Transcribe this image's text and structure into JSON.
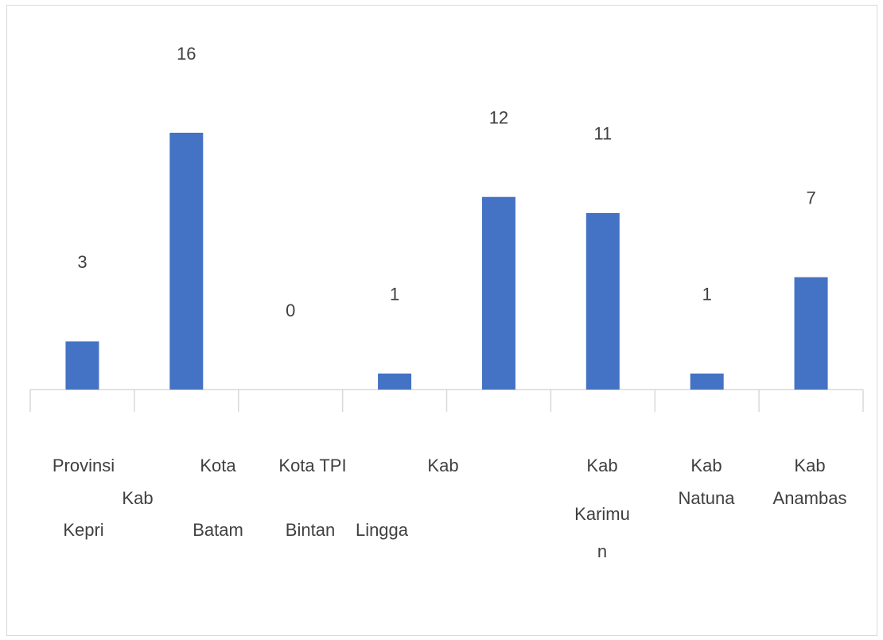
{
  "chart_data": {
    "type": "bar",
    "categories": [
      [
        "Provinsi",
        "Kab",
        "Kepri"
      ],
      [
        "Kota",
        "Batam"
      ],
      [
        "Kota TPI",
        "Bintan"
      ],
      [
        "Lingga"
      ],
      [
        "Kab"
      ],
      [
        "Kab",
        "Karimu",
        "n"
      ],
      [
        "Kab",
        "Natuna"
      ],
      [
        "Kab",
        "Anambas"
      ]
    ],
    "values": [
      3,
      16,
      0,
      1,
      12,
      11,
      1,
      7
    ],
    "color": "#4472c4"
  }
}
